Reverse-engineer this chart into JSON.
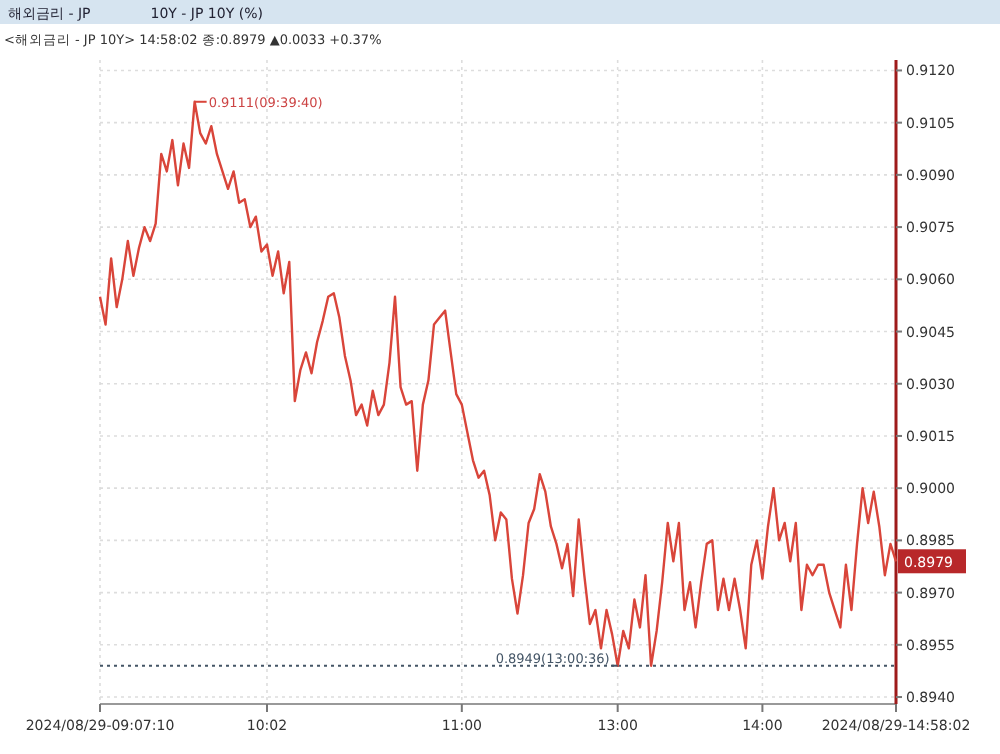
{
  "chart_data": {
    "type": "line",
    "title": "해외금리 - JP",
    "subtitle": "10Y - JP 10Y (%)",
    "annotations": [
      "<해외금리 - JP 10Y> 14:58:02 종:0.8979 ▲0.0033 +0.37%",
      "0.9111(09:39:40)",
      {
        "text": "0.8949(13:00:36)",
        "x": "13:00",
        "y": 0.8949
      },
      {
        "text": "0.8979",
        "x": "2024/08/29-14:58:02",
        "y": 0.8979
      }
    ],
    "categories": [
      "2024/08/29-09:07:10",
      null,
      null,
      null,
      null,
      null,
      null,
      null,
      null,
      null,
      null,
      null,
      null,
      null,
      null,
      null,
      null,
      null,
      null,
      null,
      null,
      null,
      null,
      null,
      null,
      null,
      null,
      null,
      null,
      null,
      "10:02",
      null,
      null,
      null,
      null,
      null,
      null,
      null,
      null,
      null,
      null,
      null,
      null,
      null,
      null,
      null,
      null,
      null,
      null,
      null,
      null,
      null,
      null,
      null,
      null,
      null,
      null,
      null,
      null,
      null,
      null,
      null,
      null,
      null,
      null,
      "11:00",
      null,
      null,
      null,
      null,
      null,
      null,
      null,
      null,
      null,
      null,
      null,
      null,
      null,
      null,
      null,
      null,
      null,
      null,
      null,
      null,
      null,
      null,
      null,
      null,
      null,
      null,
      null,
      "13:00",
      null,
      null,
      null,
      null,
      null,
      null,
      null,
      null,
      null,
      null,
      null,
      null,
      null,
      null,
      null,
      null,
      null,
      null,
      null,
      null,
      null,
      null,
      null,
      null,
      null,
      "14:00",
      null,
      null,
      null,
      null,
      null,
      null,
      null,
      null,
      null,
      null,
      null,
      null,
      null,
      null,
      null,
      null,
      null,
      null,
      null,
      null,
      null,
      null,
      null,
      "2024/08/29-14:58:02"
    ],
    "series": [
      {
        "color": "#d9453a",
        "values": [
          0.9055,
          0.9047,
          0.9066,
          0.9052,
          0.906,
          0.9071,
          0.9061,
          0.9069,
          0.9075,
          0.9071,
          0.9076,
          0.9096,
          0.9091,
          0.91,
          0.9087,
          0.9099,
          0.9092,
          0.9111,
          0.9102,
          0.9099,
          0.9104,
          0.9096,
          0.9091,
          0.9086,
          0.9091,
          0.9082,
          0.9083,
          0.9075,
          0.9078,
          0.9068,
          0.907,
          0.9061,
          0.9068,
          0.9056,
          0.9065,
          0.9025,
          0.9034,
          0.9039,
          0.9033,
          0.9042,
          0.9048,
          0.9055,
          0.9056,
          0.9049,
          0.9038,
          0.9031,
          0.9021,
          0.9024,
          0.9018,
          0.9028,
          0.9021,
          0.9024,
          0.9036,
          0.9055,
          0.9029,
          0.9024,
          0.9025,
          0.9005,
          0.9024,
          0.9031,
          0.9047,
          0.9049,
          0.9051,
          0.9039,
          0.9027,
          0.9024,
          0.9016,
          0.9008,
          0.9003,
          0.9005,
          0.8998,
          0.8985,
          0.8993,
          0.8991,
          0.8974,
          0.8964,
          0.8975,
          0.899,
          0.8994,
          0.9004,
          0.8999,
          0.8989,
          0.8984,
          0.8977,
          0.8984,
          0.8969,
          0.8991,
          0.8975,
          0.8961,
          0.8965,
          0.8954,
          0.8965,
          0.8958,
          0.8949,
          0.8959,
          0.8954,
          0.8968,
          0.896,
          0.8975,
          0.8949,
          0.8959,
          0.8973,
          0.899,
          0.8979,
          0.899,
          0.8965,
          0.8973,
          0.896,
          0.8973,
          0.8984,
          0.8985,
          0.8965,
          0.8974,
          0.8965,
          0.8974,
          0.8965,
          0.8954,
          0.8978,
          0.8985,
          0.8974,
          0.8989,
          0.9,
          0.8985,
          0.899,
          0.8979,
          0.899,
          0.8965,
          0.8978,
          0.8975,
          0.8978,
          0.8978,
          0.897,
          0.8965,
          0.896,
          0.8978,
          0.8965,
          0.8984,
          0.9,
          0.899,
          0.8999,
          0.8989,
          0.8975,
          0.8984,
          0.8979
        ]
      }
    ],
    "ylim": [
      0.8938,
      0.9123
    ],
    "yticks": [
      {
        "value": 0.894,
        "label": "0.8940"
      },
      {
        "value": 0.8955,
        "label": "0.8955"
      },
      {
        "value": 0.897,
        "label": "0.8970"
      },
      {
        "value": 0.8985,
        "label": "0.8985"
      },
      {
        "value": 0.9,
        "label": "0.9000"
      },
      {
        "value": 0.9015,
        "label": "0.9015"
      },
      {
        "value": 0.903,
        "label": "0.9030"
      },
      {
        "value": 0.9045,
        "label": "0.9045"
      },
      {
        "value": 0.906,
        "label": "0.9060"
      },
      {
        "value": 0.9075,
        "label": "0.9075"
      },
      {
        "value": 0.909,
        "label": "0.9090"
      },
      {
        "value": 0.9105,
        "label": "0.9105"
      },
      {
        "value": 0.912,
        "label": "0.9120"
      }
    ],
    "ref_lines": [
      {
        "axis": "y",
        "value": 0.8949,
        "color": "#445566",
        "line_style": "dotted"
      }
    ],
    "grid": true,
    "marker": "none",
    "line_style": "solid"
  }
}
